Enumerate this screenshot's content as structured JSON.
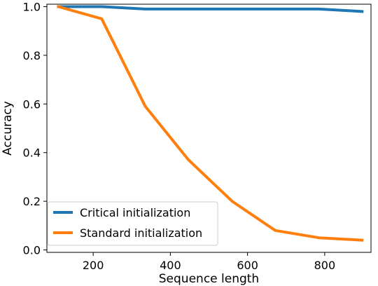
{
  "chart_data": {
    "type": "line",
    "xlabel": "Sequence length",
    "ylabel": "Accuracy",
    "xlim": [
      80,
      920
    ],
    "ylim": [
      -0.01,
      1.01
    ],
    "xticks": [
      200,
      400,
      600,
      800
    ],
    "xtick_labels": [
      "200",
      "400",
      "600",
      "800"
    ],
    "yticks": [
      0.0,
      0.2,
      0.4,
      0.6,
      0.8,
      1.0
    ],
    "ytick_labels": [
      "0.0",
      "0.2",
      "0.4",
      "0.6",
      "0.8",
      "1.0"
    ],
    "grid": false,
    "legend_position": "lower-left",
    "series": [
      {
        "name": "Critical initialization",
        "color": "#1f77b4",
        "x": [
          110,
          222,
          335,
          447,
          560,
          672,
          785,
          897
        ],
        "y": [
          1.0,
          1.0,
          0.99,
          0.99,
          0.99,
          0.99,
          0.99,
          0.98
        ]
      },
      {
        "name": "Standard initialization",
        "color": "#ff7f0e",
        "x": [
          110,
          222,
          335,
          447,
          560,
          672,
          785,
          897
        ],
        "y": [
          1.0,
          0.95,
          0.59,
          0.37,
          0.2,
          0.08,
          0.05,
          0.04
        ]
      }
    ]
  }
}
